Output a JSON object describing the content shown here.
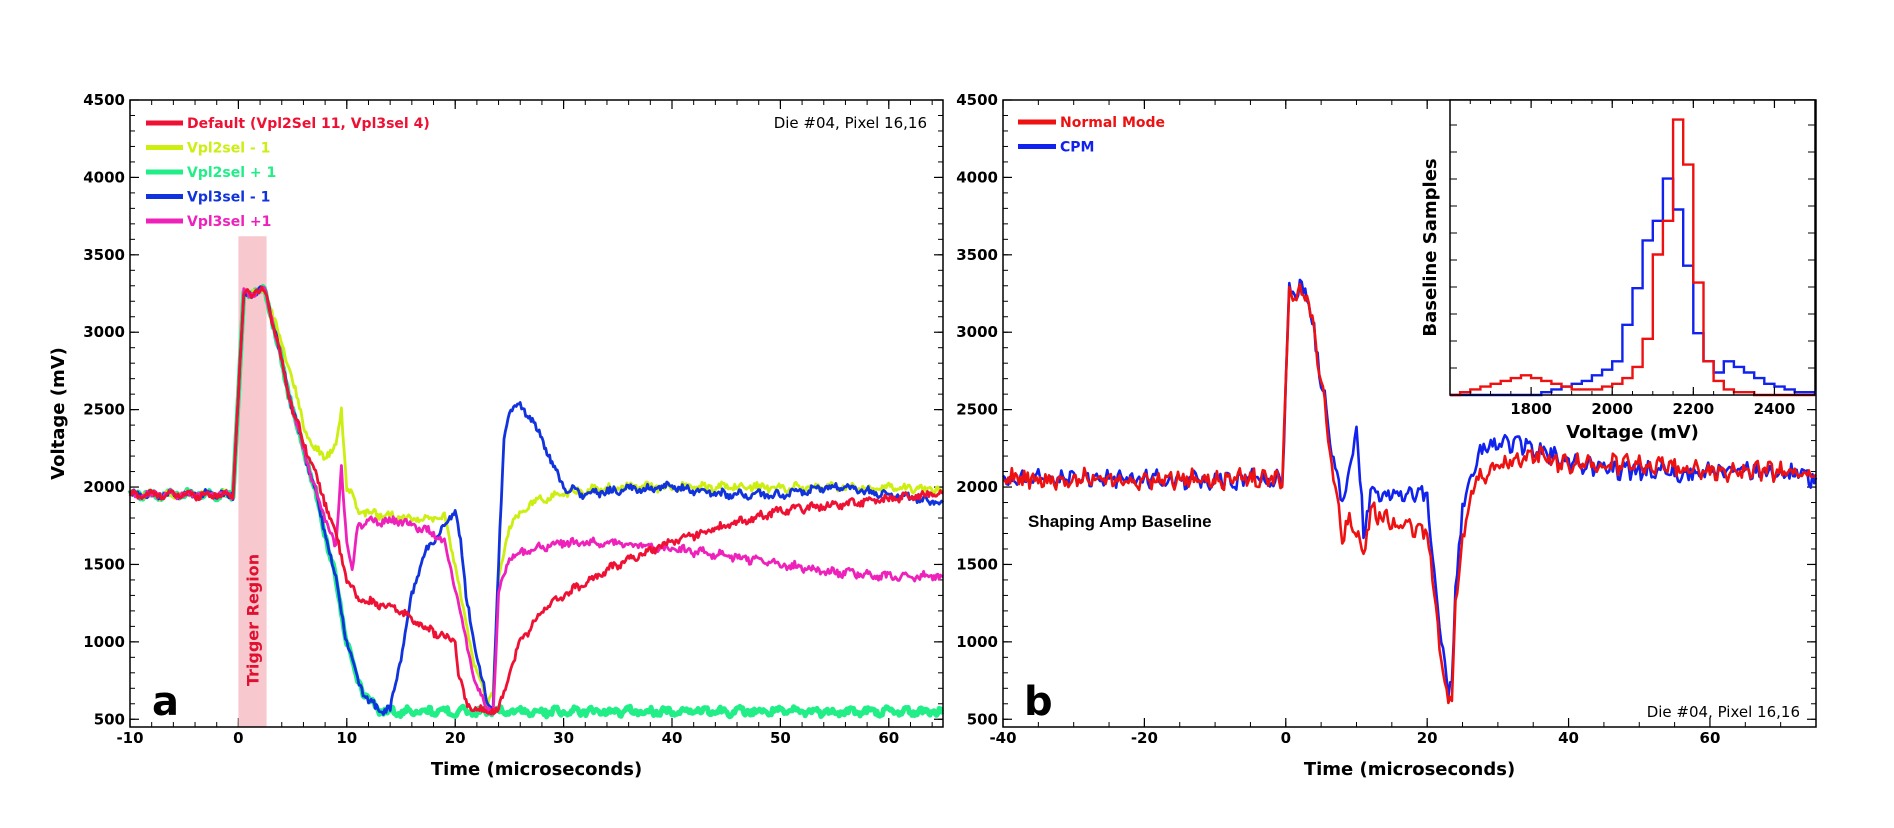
{
  "chart_data": [
    {
      "panel": "a",
      "type": "line",
      "xlabel": "Time (microseconds)",
      "ylabel": "Voltage (mV)",
      "xlim": [
        -10,
        65
      ],
      "ylim": [
        450,
        4500
      ],
      "xticks": [
        -10,
        0,
        10,
        20,
        30,
        40,
        50,
        60
      ],
      "yticks": [
        500,
        1000,
        1500,
        2000,
        2500,
        3000,
        3500,
        4000,
        4500
      ],
      "annotation": "Die #04, Pixel 16,16",
      "panel_letter": "a",
      "shaded_region": {
        "label": "Trigger Region",
        "x": [
          0,
          2.6
        ],
        "y": [
          450,
          3620
        ],
        "color": "#f7c9cf"
      },
      "series": [
        {
          "name": "Default (Vpl2Sel 11, Vpl3sel 4)",
          "color": "#ee1133",
          "x": [
            -10,
            -1,
            -0.5,
            0.5,
            2.5,
            5,
            7,
            9,
            10,
            11,
            13,
            15,
            17,
            19,
            20,
            20.3,
            21,
            22,
            24,
            25,
            26,
            28,
            30,
            35,
            40,
            50,
            60,
            65
          ],
          "y": [
            1950,
            1950,
            1950,
            3250,
            3270,
            2500,
            2100,
            1700,
            1400,
            1280,
            1240,
            1200,
            1100,
            1030,
            1000,
            800,
            600,
            560,
            560,
            800,
            1000,
            1200,
            1300,
            1500,
            1650,
            1850,
            1920,
            1960
          ]
        },
        {
          "name": "Vpl2sel - 1",
          "color": "#ccee11",
          "x": [
            -10,
            -1,
            -0.5,
            0.5,
            2.5,
            5,
            6,
            7,
            8,
            9,
            9.5,
            10,
            10.5,
            11,
            13,
            15,
            17,
            19,
            20,
            21,
            22,
            23,
            23.5,
            24,
            25,
            27,
            30,
            35,
            40,
            50,
            60,
            65
          ],
          "y": [
            1950,
            1950,
            1950,
            3250,
            3270,
            2700,
            2400,
            2250,
            2200,
            2250,
            2500,
            2000,
            1950,
            1850,
            1820,
            1800,
            1800,
            1800,
            1500,
            1100,
            800,
            600,
            700,
            1400,
            1750,
            1900,
            1960,
            2000,
            2000,
            2000,
            2000,
            1980
          ]
        },
        {
          "name": "Vpl2sel + 1",
          "color": "#22ee88",
          "x": [
            -10,
            -1,
            -0.5,
            0.5,
            2.5,
            5,
            7,
            9,
            10,
            11,
            12,
            13,
            14,
            20,
            30,
            40,
            50,
            60,
            65
          ],
          "y": [
            1950,
            1950,
            1950,
            3250,
            3270,
            2500,
            2000,
            1400,
            1000,
            750,
            620,
            560,
            550,
            550,
            550,
            550,
            550,
            550,
            550
          ]
        },
        {
          "name": "Vpl3sel - 1",
          "color": "#1133dd",
          "x": [
            -10,
            -1,
            -0.5,
            0.5,
            2.5,
            5,
            7,
            9,
            10,
            11,
            12,
            13,
            14,
            15,
            16,
            17,
            18,
            19,
            20,
            20.5,
            21,
            22,
            23,
            23.5,
            24,
            24.5,
            25,
            26,
            27,
            28,
            30,
            32,
            35,
            40,
            45,
            50,
            55,
            60,
            65
          ],
          "y": [
            1950,
            1950,
            1950,
            3250,
            3270,
            2500,
            2000,
            1400,
            1000,
            750,
            620,
            560,
            560,
            900,
            1300,
            1550,
            1650,
            1750,
            1850,
            1650,
            1300,
            900,
            600,
            600,
            1500,
            2300,
            2500,
            2520,
            2450,
            2300,
            2000,
            1950,
            1980,
            2000,
            1950,
            1950,
            2000,
            1950,
            1900
          ]
        },
        {
          "name": "Vpl3sel +1",
          "color": "#ee22bb",
          "x": [
            -10,
            -1,
            -0.5,
            0.5,
            2.5,
            5,
            7,
            8,
            9,
            9.5,
            10,
            10.5,
            11,
            12,
            15,
            18,
            19,
            20,
            21,
            22,
            23,
            23.5,
            24,
            25,
            27,
            30,
            35,
            40,
            45,
            50,
            55,
            60,
            65
          ],
          "y": [
            1950,
            1950,
            1950,
            3250,
            3270,
            2500,
            2000,
            1800,
            1600,
            2150,
            1650,
            1450,
            1750,
            1780,
            1780,
            1700,
            1650,
            1350,
            1000,
            700,
            560,
            560,
            1300,
            1550,
            1600,
            1640,
            1640,
            1600,
            1560,
            1500,
            1450,
            1420,
            1420
          ]
        }
      ]
    },
    {
      "panel": "b",
      "type": "line",
      "xlabel": "Time (microseconds)",
      "ylabel": "",
      "xlim": [
        -40,
        75
      ],
      "ylim": [
        450,
        4500
      ],
      "xticks": [
        -40,
        -20,
        0,
        20,
        40,
        60
      ],
      "yticks": [
        500,
        1000,
        1500,
        2000,
        2500,
        3000,
        3500,
        4000,
        4500
      ],
      "annotation": "Die #04, Pixel 16,16",
      "panel_letter": "b",
      "text_label": "Shaping Amp Baseline",
      "series": [
        {
          "name": "Normal Mode",
          "color": "#ee1111",
          "x": [
            -40,
            -1,
            -0.5,
            0.5,
            3,
            5,
            7,
            8,
            9,
            10,
            11,
            12,
            14,
            16,
            18,
            20,
            21,
            22,
            23,
            23.5,
            24,
            25,
            27,
            30,
            35,
            40,
            50,
            60,
            70,
            75
          ],
          "y": [
            2050,
            2050,
            2050,
            3250,
            3270,
            2700,
            2000,
            1700,
            1800,
            1700,
            1550,
            1850,
            1800,
            1750,
            1720,
            1700,
            1300,
            900,
            600,
            650,
            1200,
            1700,
            2050,
            2150,
            2200,
            2150,
            2150,
            2100,
            2100,
            2080
          ]
        },
        {
          "name": "CPM",
          "color": "#1122ee",
          "x": [
            -40,
            -1,
            -0.5,
            0.5,
            3,
            5,
            7,
            8,
            9,
            10,
            11,
            12,
            14,
            16,
            18,
            20,
            21,
            22,
            23,
            23.5,
            24,
            25,
            27,
            30,
            35,
            40,
            50,
            60,
            70,
            75
          ],
          "y": [
            2050,
            2050,
            2050,
            3250,
            3280,
            2700,
            2100,
            1900,
            2100,
            2400,
            1700,
            1950,
            1950,
            1950,
            1950,
            1950,
            1400,
            1000,
            700,
            800,
            1300,
            1900,
            2200,
            2300,
            2250,
            2150,
            2100,
            2100,
            2100,
            2060
          ]
        }
      ]
    },
    {
      "panel": "b-inset",
      "type": "histogram",
      "xlabel": "Voltage (mV)",
      "ylabel": "Baseline Samples",
      "xlim": [
        1600,
        2500
      ],
      "ylim": [
        0,
        1
      ],
      "xticks": [
        1800,
        2000,
        2200,
        2400
      ],
      "bin_edges": [
        1600,
        1625,
        1650,
        1675,
        1700,
        1725,
        1750,
        1775,
        1800,
        1825,
        1850,
        1875,
        1900,
        1925,
        1950,
        1975,
        2000,
        2025,
        2050,
        2075,
        2100,
        2125,
        2150,
        2175,
        2200,
        2225,
        2250,
        2275,
        2300,
        2325,
        2350,
        2375,
        2400,
        2425,
        2450,
        2475,
        2500
      ],
      "series": [
        {
          "name": "Normal Mode",
          "color": "#ee1111",
          "values": [
            0.0,
            0.01,
            0.02,
            0.03,
            0.04,
            0.05,
            0.06,
            0.07,
            0.06,
            0.05,
            0.04,
            0.03,
            0.02,
            0.02,
            0.02,
            0.03,
            0.04,
            0.06,
            0.1,
            0.2,
            0.5,
            0.62,
            0.98,
            0.82,
            0.4,
            0.12,
            0.05,
            0.02,
            0.01,
            0.01,
            0.0,
            0.0,
            0.0,
            0.0,
            0.0,
            0.0
          ]
        },
        {
          "name": "CPM",
          "color": "#1122ee",
          "values": [
            0.0,
            0.0,
            0.0,
            0.0,
            0.0,
            0.0,
            0.0,
            0.0,
            0.0,
            0.01,
            0.02,
            0.03,
            0.04,
            0.05,
            0.07,
            0.09,
            0.12,
            0.25,
            0.38,
            0.55,
            0.62,
            0.77,
            0.66,
            0.46,
            0.22,
            0.12,
            0.08,
            0.12,
            0.1,
            0.08,
            0.06,
            0.04,
            0.03,
            0.02,
            0.01,
            0.01
          ]
        }
      ]
    }
  ]
}
